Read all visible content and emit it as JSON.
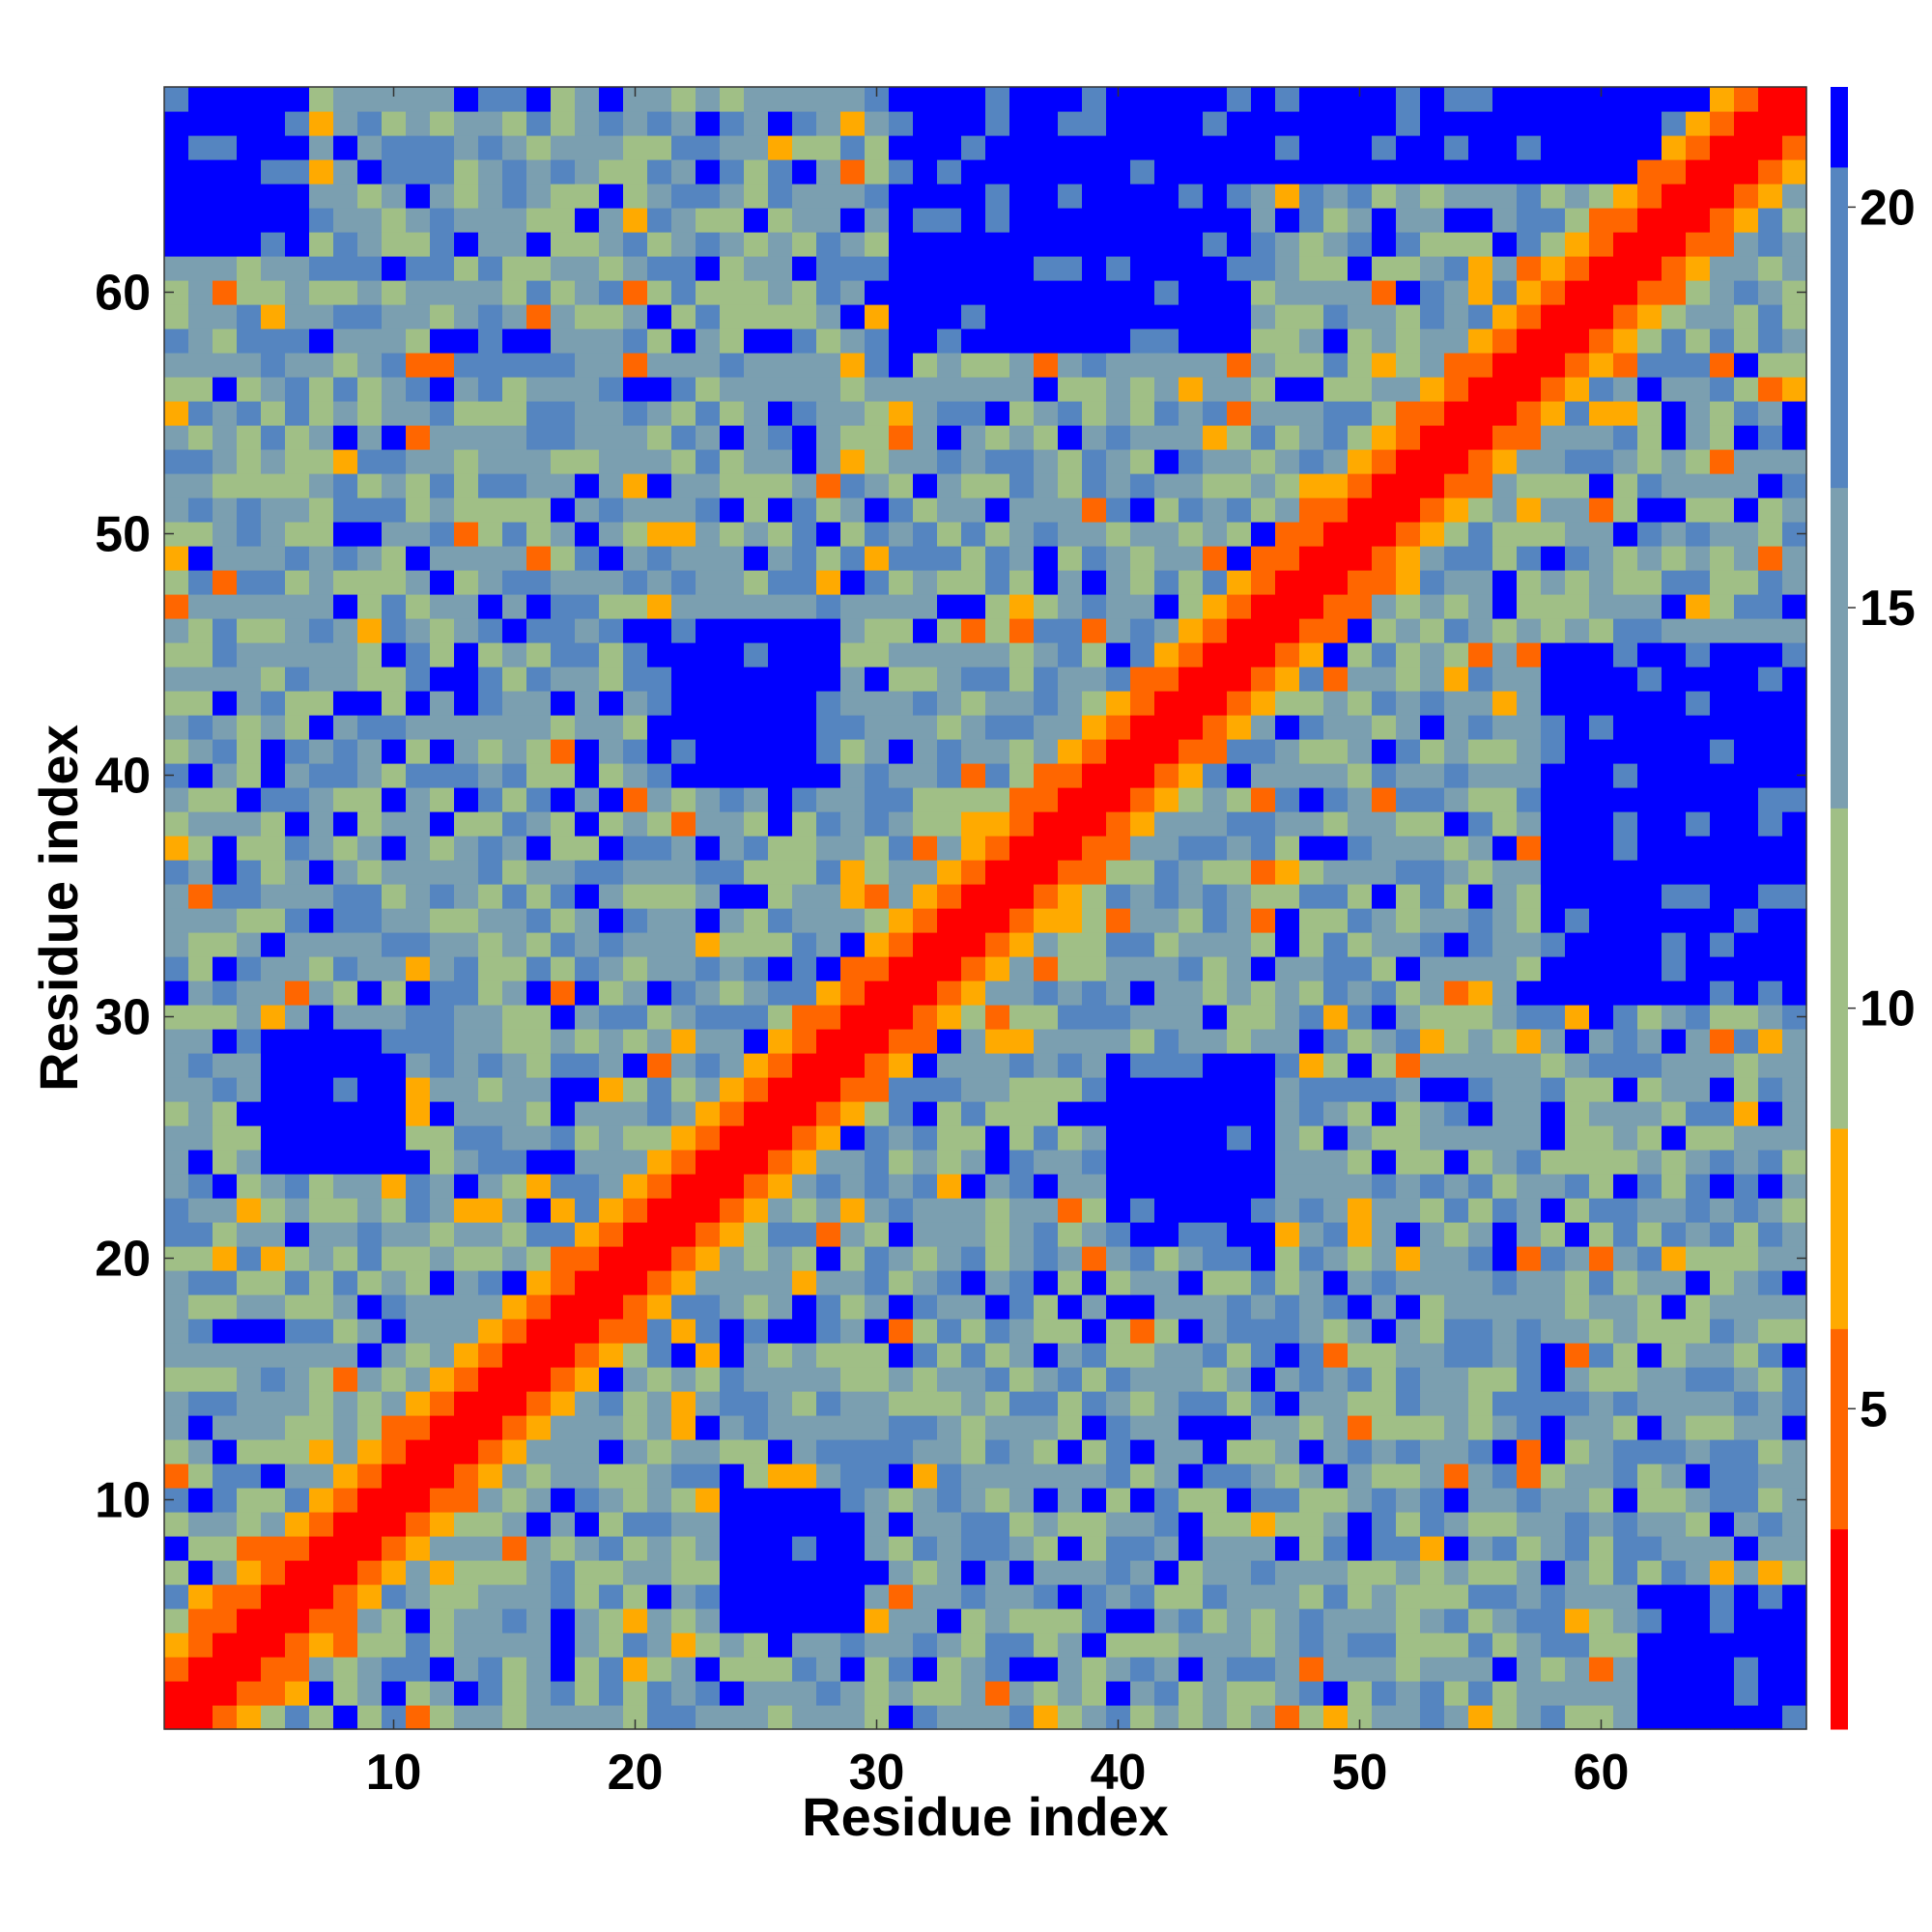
{
  "chart_data": {
    "type": "heatmap",
    "title": "",
    "xlabel": "Residue index",
    "ylabel": "Residue index",
    "n_residues": 68,
    "xlim": [
      1,
      68
    ],
    "ylim": [
      1,
      68
    ],
    "x_ticks": [
      10,
      20,
      30,
      40,
      50,
      60
    ],
    "y_ticks": [
      10,
      20,
      30,
      40,
      50,
      60
    ],
    "colorbar": {
      "range": [
        1,
        21.5
      ],
      "ticks": [
        5,
        10,
        15,
        20
      ],
      "bands": [
        {
          "from": 1,
          "to": 3.5,
          "color": "#ff0000"
        },
        {
          "from": 3.5,
          "to": 6.0,
          "color": "#ff6600"
        },
        {
          "from": 6.0,
          "to": 8.5,
          "color": "#ffaa00"
        },
        {
          "from": 8.5,
          "to": 12.5,
          "color": "#a0bf86"
        },
        {
          "from": 12.5,
          "to": 16.5,
          "color": "#7b9fb0"
        },
        {
          "from": 16.5,
          "to": 20.5,
          "color": "#5585c0"
        },
        {
          "from": 20.5,
          "to": 21.5,
          "color": "#0000ff"
        }
      ]
    },
    "value_model": "approximate residue-residue distance: near-diagonal contacts low, far pairs high; blue blocks >20",
    "far_blocks": [
      {
        "i": [
          31,
          45
        ],
        "j": [
          58,
          68
        ]
      },
      {
        "i": [
          21,
          28
        ],
        "j": [
          40,
          46
        ]
      },
      {
        "i": [
          40,
          46
        ],
        "j": [
          21,
          28
        ]
      },
      {
        "i": [
          58,
          68
        ],
        "j": [
          31,
          45
        ]
      },
      {
        "i": [
          43,
          68
        ],
        "j": [
          65,
          68
        ]
      },
      {
        "i": [
          1,
          6
        ],
        "j": [
          62,
          68
        ]
      },
      {
        "i": [
          62,
          68
        ],
        "j": [
          1,
          6
        ]
      },
      {
        "i": [
          24,
          29
        ],
        "j": [
          5,
          10
        ]
      },
      {
        "i": [
          5,
          10
        ],
        "j": [
          24,
          29
        ]
      }
    ]
  }
}
